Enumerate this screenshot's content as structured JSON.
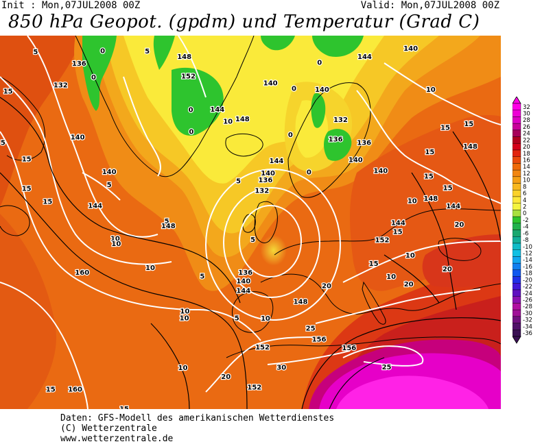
{
  "header": {
    "init": "Init : Mon,07JUL2008 00Z",
    "valid": "Valid: Mon,07JUL2008 00Z",
    "title": "850 hPa Geopot. (gpdm) und Temperatur (Grad C)"
  },
  "footer": {
    "line1": "Daten: GFS-Modell des amerikanischen Wetterdienstes",
    "line2": "(C) Wetterzentrale",
    "line3": "www.wetterzentrale.de"
  },
  "colorbar": {
    "levels": [
      "32",
      "30",
      "28",
      "26",
      "24",
      "22",
      "20",
      "18",
      "16",
      "14",
      "12",
      "10",
      "8",
      "6",
      "4",
      "2",
      "0",
      "-2",
      "-4",
      "-6",
      "-8",
      "-10",
      "-12",
      "-14",
      "-16",
      "-18",
      "-20",
      "-22",
      "-24",
      "-26",
      "-28",
      "-30",
      "-32",
      "-34",
      "-36"
    ],
    "colors": [
      "#ff00e6",
      "#ee00d6",
      "#dd00c4",
      "#c8009a",
      "#a8005a",
      "#b0001e",
      "#d4001a",
      "#e2250f",
      "#ea4a0b",
      "#ef6a08",
      "#f28610",
      "#f5a014",
      "#f8b81e",
      "#fbd22a",
      "#fde83a",
      "#f4f440",
      "#a8e040",
      "#2ec42e",
      "#22b24c",
      "#1aa870",
      "#12b09a",
      "#10bcc8",
      "#10c0e4",
      "#10a8f0",
      "#1080f0",
      "#1058f0",
      "#2030e8",
      "#4018d8",
      "#6010c0",
      "#8c10b0",
      "#b010a0",
      "#a01098",
      "#701080",
      "#501068",
      "#3a1054"
    ]
  },
  "map_labels": {
    "contour_geopotential": [
      {
        "text": "136",
        "u": 0.158,
        "v": 0.073
      },
      {
        "text": "132",
        "u": 0.121,
        "v": 0.131
      },
      {
        "text": "140",
        "u": 0.155,
        "v": 0.271
      },
      {
        "text": "140",
        "u": 0.218,
        "v": 0.363
      },
      {
        "text": "144",
        "u": 0.19,
        "v": 0.454
      },
      {
        "text": "148",
        "u": 0.368,
        "v": 0.055
      },
      {
        "text": "152",
        "u": 0.376,
        "v": 0.107
      },
      {
        "text": "144",
        "u": 0.434,
        "v": 0.196
      },
      {
        "text": "148",
        "u": 0.484,
        "v": 0.222
      },
      {
        "text": "140",
        "u": 0.54,
        "v": 0.126
      },
      {
        "text": "140",
        "u": 0.535,
        "v": 0.367
      },
      {
        "text": "136",
        "u": 0.53,
        "v": 0.385
      },
      {
        "text": "132",
        "u": 0.523,
        "v": 0.414
      },
      {
        "text": "144",
        "u": 0.552,
        "v": 0.334
      },
      {
        "text": "148",
        "u": 0.336,
        "v": 0.508
      },
      {
        "text": "160",
        "u": 0.164,
        "v": 0.633
      },
      {
        "text": "136",
        "u": 0.49,
        "v": 0.633
      },
      {
        "text": "140",
        "u": 0.486,
        "v": 0.656
      },
      {
        "text": "144",
        "u": 0.486,
        "v": 0.682
      },
      {
        "text": "148",
        "u": 0.6,
        "v": 0.711
      },
      {
        "text": "152",
        "u": 0.524,
        "v": 0.833
      },
      {
        "text": "152",
        "u": 0.508,
        "v": 0.94
      },
      {
        "text": "156",
        "u": 0.637,
        "v": 0.812
      },
      {
        "text": "156",
        "u": 0.697,
        "v": 0.835
      },
      {
        "text": "140",
        "u": 0.643,
        "v": 0.143
      },
      {
        "text": "132",
        "u": 0.68,
        "v": 0.224
      },
      {
        "text": "136",
        "u": 0.67,
        "v": 0.276
      },
      {
        "text": "136",
        "u": 0.727,
        "v": 0.285
      },
      {
        "text": "140",
        "u": 0.71,
        "v": 0.331
      },
      {
        "text": "140",
        "u": 0.76,
        "v": 0.361
      },
      {
        "text": "144",
        "u": 0.728,
        "v": 0.055
      },
      {
        "text": "140",
        "u": 0.82,
        "v": 0.033
      },
      {
        "text": "144",
        "u": 0.795,
        "v": 0.5
      },
      {
        "text": "148",
        "u": 0.86,
        "v": 0.435
      },
      {
        "text": "148",
        "u": 0.939,
        "v": 0.295
      },
      {
        "text": "144",
        "u": 0.905,
        "v": 0.455
      },
      {
        "text": "152",
        "u": 0.763,
        "v": 0.546
      },
      {
        "text": "160",
        "u": 0.15,
        "v": 0.946
      }
    ],
    "contour_temperature": [
      {
        "text": "5",
        "u": 0.071,
        "v": 0.042
      },
      {
        "text": "15",
        "u": 0.016,
        "v": 0.148
      },
      {
        "text": "5",
        "u": 0.294,
        "v": 0.04
      },
      {
        "text": "0",
        "u": 0.205,
        "v": 0.039
      },
      {
        "text": "0",
        "u": 0.187,
        "v": 0.11
      },
      {
        "text": "0",
        "u": 0.381,
        "v": 0.197
      },
      {
        "text": "0",
        "u": 0.382,
        "v": 0.256
      },
      {
        "text": "10",
        "u": 0.455,
        "v": 0.228
      },
      {
        "text": "0",
        "u": 0.587,
        "v": 0.14
      },
      {
        "text": "0",
        "u": 0.58,
        "v": 0.264
      },
      {
        "text": "0",
        "u": 0.638,
        "v": 0.071
      },
      {
        "text": "0",
        "u": 0.617,
        "v": 0.364
      },
      {
        "text": "5",
        "u": 0.476,
        "v": 0.388
      },
      {
        "text": "5",
        "u": 0.218,
        "v": 0.398
      },
      {
        "text": "5",
        "u": 0.505,
        "v": 0.545
      },
      {
        "text": "5",
        "u": 0.333,
        "v": 0.495
      },
      {
        "text": "10",
        "u": 0.23,
        "v": 0.542
      },
      {
        "text": "10",
        "u": 0.3,
        "v": 0.62
      },
      {
        "text": "10",
        "u": 0.369,
        "v": 0.737
      },
      {
        "text": "10",
        "u": 0.368,
        "v": 0.755
      },
      {
        "text": "10",
        "u": 0.53,
        "v": 0.756
      },
      {
        "text": "5",
        "u": 0.473,
        "v": 0.755
      },
      {
        "text": "10",
        "u": 0.365,
        "v": 0.888
      },
      {
        "text": "15",
        "u": 0.053,
        "v": 0.329
      },
      {
        "text": "15",
        "u": 0.053,
        "v": 0.408
      },
      {
        "text": "15",
        "u": 0.095,
        "v": 0.443
      },
      {
        "text": "5",
        "u": 0.006,
        "v": 0.285
      },
      {
        "text": "5",
        "u": 0.404,
        "v": 0.643
      },
      {
        "text": "20",
        "u": 0.652,
        "v": 0.669
      },
      {
        "text": "20",
        "u": 0.451,
        "v": 0.912
      },
      {
        "text": "30",
        "u": 0.562,
        "v": 0.887
      },
      {
        "text": "25",
        "u": 0.62,
        "v": 0.783
      },
      {
        "text": "25",
        "u": 0.772,
        "v": 0.886
      },
      {
        "text": "15",
        "u": 0.746,
        "v": 0.609
      },
      {
        "text": "10",
        "u": 0.781,
        "v": 0.644
      },
      {
        "text": "20",
        "u": 0.816,
        "v": 0.664
      },
      {
        "text": "10",
        "u": 0.823,
        "v": 0.441
      },
      {
        "text": "10",
        "u": 0.86,
        "v": 0.143
      },
      {
        "text": "15",
        "u": 0.889,
        "v": 0.245
      },
      {
        "text": "15",
        "u": 0.856,
        "v": 0.375
      },
      {
        "text": "15",
        "u": 0.894,
        "v": 0.406
      },
      {
        "text": "15",
        "u": 0.858,
        "v": 0.31
      },
      {
        "text": "15",
        "u": 0.794,
        "v": 0.524
      },
      {
        "text": "10",
        "u": 0.819,
        "v": 0.587
      },
      {
        "text": "20",
        "u": 0.893,
        "v": 0.624
      },
      {
        "text": "20",
        "u": 0.917,
        "v": 0.505
      },
      {
        "text": "10",
        "u": 0.232,
        "v": 0.556
      },
      {
        "text": "15",
        "u": 0.101,
        "v": 0.946
      },
      {
        "text": "15",
        "u": 0.248,
        "v": 0.998
      },
      {
        "text": "15",
        "u": 0.936,
        "v": 0.235
      }
    ]
  }
}
